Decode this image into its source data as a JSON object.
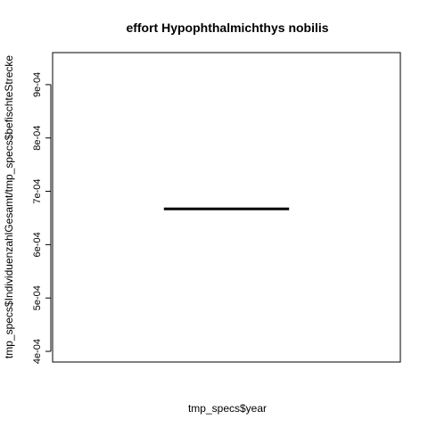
{
  "chart_data": {
    "type": "bar",
    "title": "effort Hypophthalmichthys nobilis",
    "xlabel": "tmp_specs$year",
    "ylabel": "tmp_specs$IndividuenzahlGesamt/tmp_specs$befischteStrecke",
    "ylim": [
      0.00038,
      0.00096
    ],
    "yticks": [
      0.0004,
      0.0005,
      0.0006,
      0.0007,
      0.0008,
      0.0009
    ],
    "ytick_labels": [
      "4e-04",
      "5e-04",
      "6e-04",
      "7e-04",
      "8e-04",
      "9e-04"
    ],
    "xlim": [
      0,
      1
    ],
    "segments": [
      {
        "x_start": 0.32,
        "x_end": 0.68,
        "value": 0.000667
      }
    ],
    "grid": false,
    "legend": "none",
    "colors": {
      "line": "#000000",
      "axes": "#000000",
      "background": "#ffffff"
    }
  }
}
